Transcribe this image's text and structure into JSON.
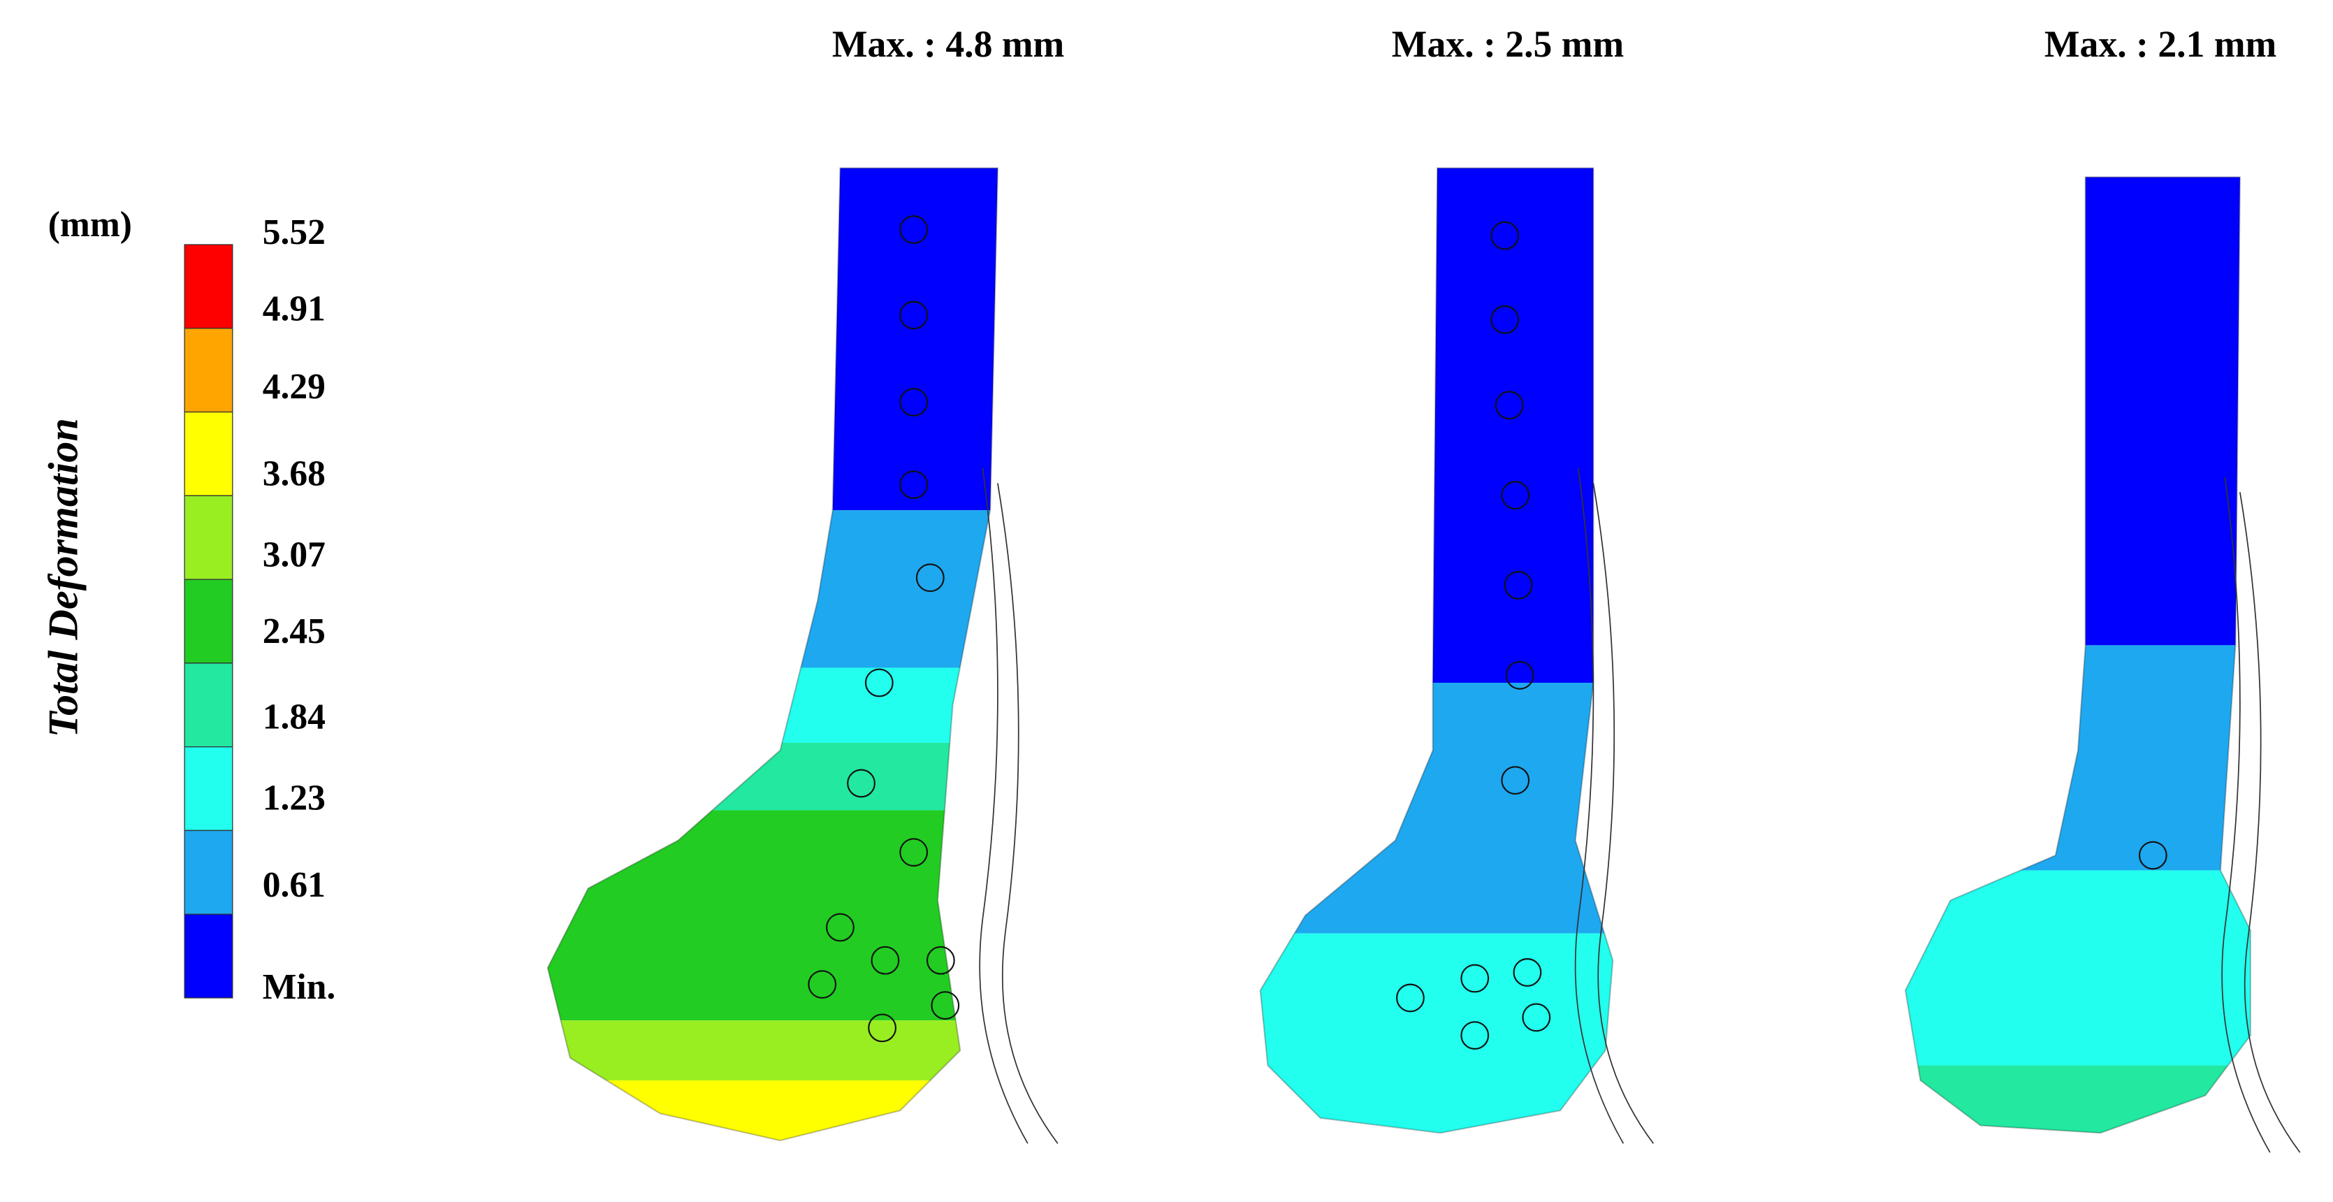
{
  "legend": {
    "unit": "(mm)",
    "title": "Total Deformation",
    "labels": [
      "5.52",
      "4.91",
      "4.29",
      "3.68",
      "3.07",
      "2.45",
      "1.84",
      "1.23",
      "0.61",
      "Min."
    ],
    "colors": [
      "#ff0000",
      "#ffa500",
      "#ffff00",
      "#99ee22",
      "#22cc22",
      "#22e8a0",
      "#22ffee",
      "#1ea8f0",
      "#0000ff"
    ]
  },
  "panels": [
    {
      "title": "Max. : 4.8 mm"
    },
    {
      "title": "Max. : 2.5 mm"
    },
    {
      "title": "Max. : 2.1 mm"
    }
  ]
}
